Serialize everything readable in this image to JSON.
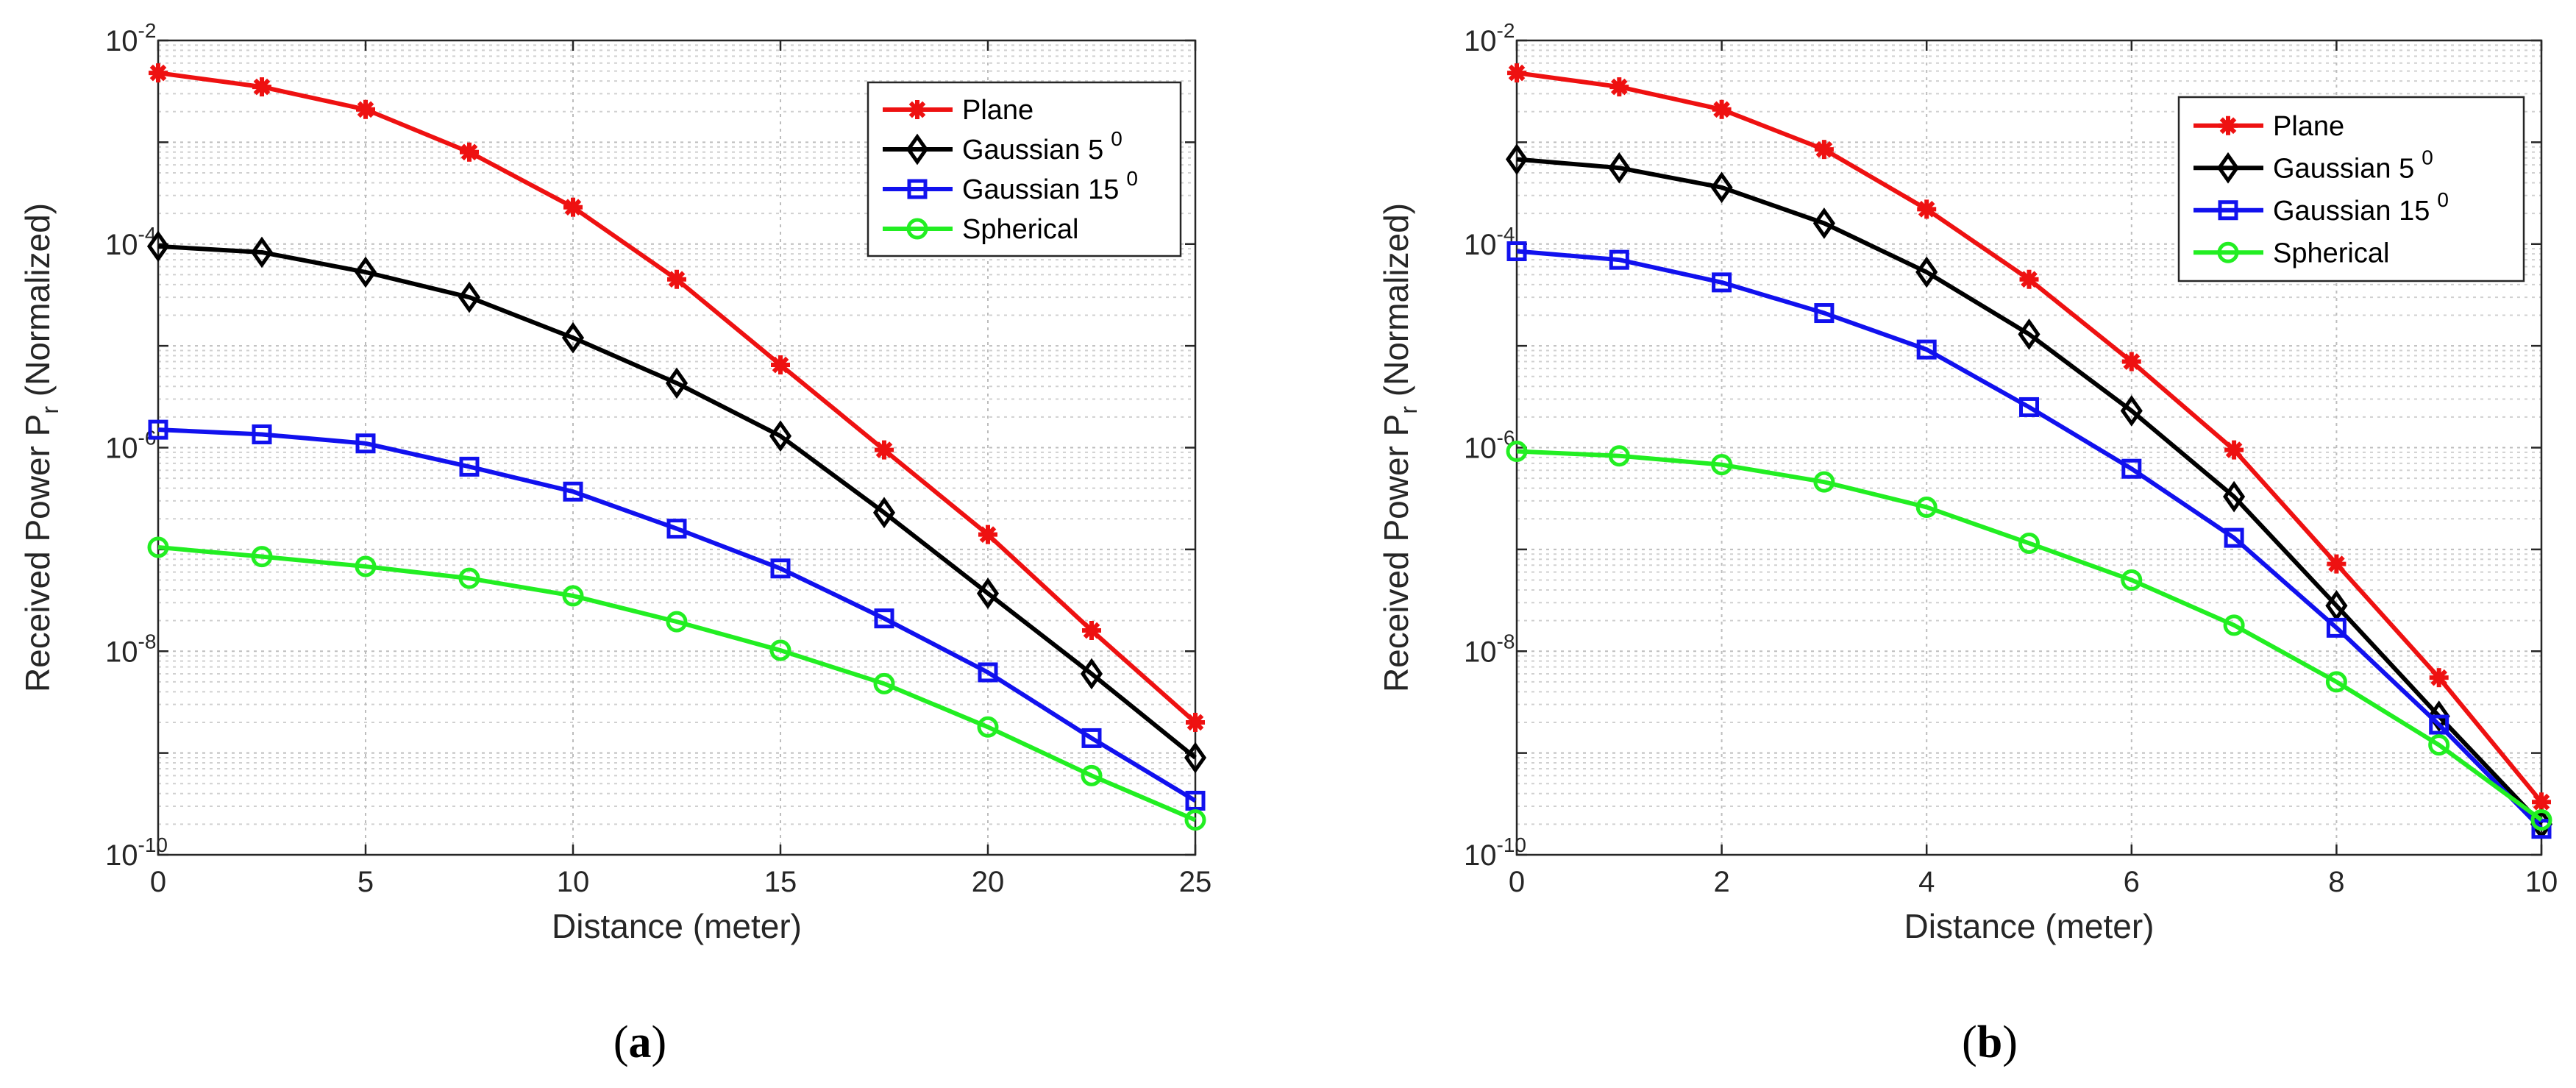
{
  "chart_data": [
    {
      "type": "line",
      "yscale": "log",
      "panel_label": "a",
      "title": "",
      "xlabel": "Distance (meter)",
      "ylabel": "Received Power P",
      "ylabel_subscript": "r",
      "ylabel_suffix": " (Normalized)",
      "xlim": [
        0,
        25
      ],
      "ylim": [
        1e-10,
        0.01
      ],
      "xticks": [
        0,
        5,
        10,
        15,
        20,
        25
      ],
      "ytick_exponents": [
        -10,
        -8,
        -6,
        -4,
        -2
      ],
      "grid": true,
      "minor_grid": true,
      "legend_position": "top-right",
      "x": [
        0,
        2.5,
        5,
        7.5,
        10,
        12.5,
        15,
        17.5,
        20,
        22.5,
        25
      ],
      "series": [
        {
          "name": "Plane",
          "marker": "asterisk",
          "color": "#ee1111",
          "values": [
            0.0048,
            0.0035,
            0.0021,
            0.0008,
            0.00023,
            4.5e-05,
            6.5e-06,
            9.5e-07,
            1.4e-07,
            1.6e-08,
            2e-09
          ]
        },
        {
          "name": "Gaussian 5",
          "superscript": "0",
          "marker": "diamond",
          "color": "#000000",
          "values": [
            9.5e-05,
            8.3e-05,
            5.3e-05,
            3e-05,
            1.2e-05,
            4.3e-06,
            1.3e-06,
            2.3e-07,
            3.7e-08,
            6e-09,
            9e-10
          ]
        },
        {
          "name": "Gaussian 15",
          "superscript": "0",
          "marker": "square",
          "color": "#1111ee",
          "values": [
            1.5e-06,
            1.35e-06,
            1.1e-06,
            6.5e-07,
            3.7e-07,
            1.6e-07,
            6.5e-08,
            2.1e-08,
            6.2e-09,
            1.4e-09,
            3.4e-10
          ]
        },
        {
          "name": "Spherical",
          "marker": "circle",
          "color": "#22ee22",
          "values": [
            1.05e-07,
            8.5e-08,
            6.8e-08,
            5.2e-08,
            3.5e-08,
            1.95e-08,
            1.02e-08,
            4.8e-09,
            1.8e-09,
            6e-10,
            2.2e-10
          ]
        }
      ]
    },
    {
      "type": "line",
      "yscale": "log",
      "panel_label": "b",
      "title": "",
      "xlabel": "Distance (meter)",
      "ylabel": "Received Power P",
      "ylabel_subscript": "r",
      "ylabel_suffix": " (Normalized)",
      "xlim": [
        0,
        10
      ],
      "ylim": [
        1e-10,
        0.01
      ],
      "xticks": [
        0,
        2,
        4,
        6,
        8,
        10
      ],
      "ytick_exponents": [
        -10,
        -8,
        -6,
        -4,
        -2
      ],
      "grid": true,
      "minor_grid": true,
      "legend_position": "top-right",
      "x": [
        0,
        1,
        2,
        3,
        4,
        5,
        6,
        7,
        8,
        9,
        10
      ],
      "series": [
        {
          "name": "Plane",
          "marker": "asterisk",
          "color": "#ee1111",
          "values": [
            0.0048,
            0.0035,
            0.0021,
            0.00085,
            0.00022,
            4.5e-05,
            7e-06,
            9.5e-07,
            7.2e-08,
            5.5e-09,
            3.3e-10
          ]
        },
        {
          "name": "Gaussian 5",
          "superscript": "0",
          "marker": "diamond",
          "color": "#000000",
          "values": [
            0.00068,
            0.00056,
            0.00036,
            0.00016,
            5.3e-05,
            1.3e-05,
            2.3e-06,
            3.3e-07,
            2.8e-08,
            2.3e-09,
            2e-10
          ]
        },
        {
          "name": "Gaussian 15",
          "superscript": "0",
          "marker": "square",
          "color": "#1111ee",
          "values": [
            8.5e-05,
            7e-05,
            4.2e-05,
            2.1e-05,
            9.2e-06,
            2.5e-06,
            6.2e-07,
            1.3e-07,
            1.7e-08,
            1.9e-09,
            1.8e-10
          ]
        },
        {
          "name": "Spherical",
          "marker": "circle",
          "color": "#22ee22",
          "values": [
            9.2e-07,
            8.3e-07,
            6.8e-07,
            4.6e-07,
            2.6e-07,
            1.15e-07,
            5e-08,
            1.8e-08,
            5e-09,
            1.2e-09,
            2.2e-10
          ]
        }
      ]
    }
  ]
}
